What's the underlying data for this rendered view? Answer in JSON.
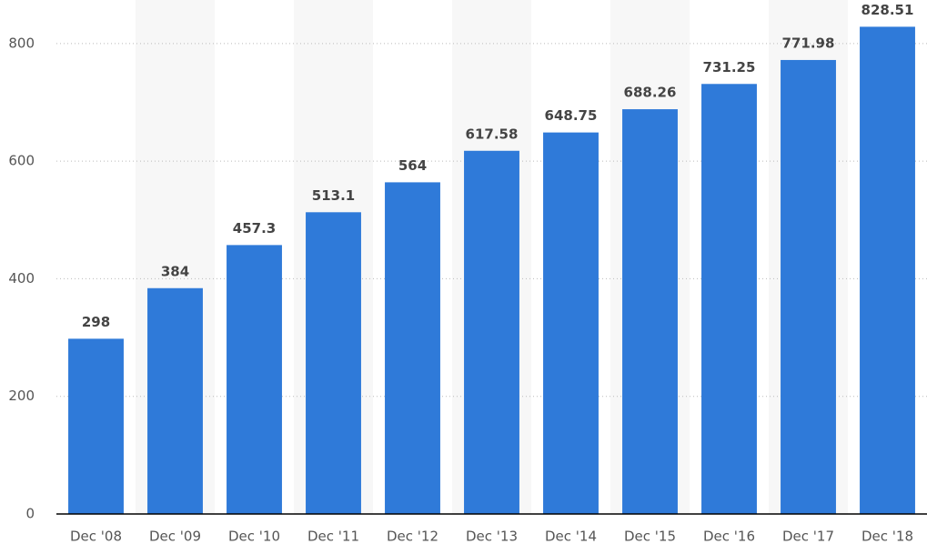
{
  "chart_data": {
    "type": "bar",
    "categories": [
      "Dec '08",
      "Dec '09",
      "Dec '10",
      "Dec '11",
      "Dec '12",
      "Dec '13",
      "Dec '14",
      "Dec '15",
      "Dec '16",
      "Dec '17",
      "Dec '18"
    ],
    "values": [
      298,
      384,
      457.3,
      513.1,
      564,
      617.58,
      648.75,
      688.26,
      731.25,
      771.98,
      828.51
    ],
    "color": "#2f7ad9",
    "ylim": [
      0,
      874
    ],
    "yticks": [
      0,
      200,
      400,
      600,
      800
    ],
    "grid": true
  }
}
